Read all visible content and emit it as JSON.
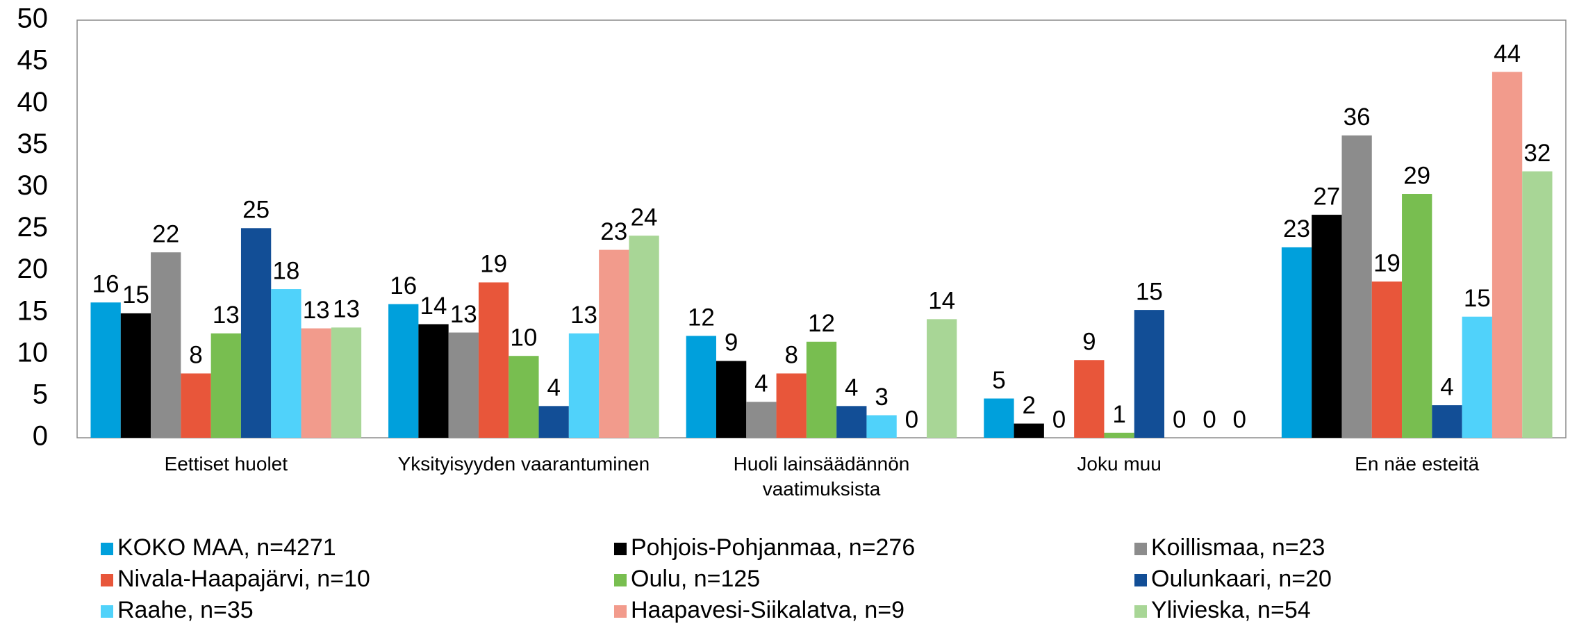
{
  "chart_data": {
    "type": "bar",
    "categories": [
      "Eettiset huolet",
      "Yksityisyyden vaarantuminen",
      "Huoli lainsäädännön vaatimuksista",
      "Joku muu",
      "En näe esteitä"
    ],
    "series": [
      {
        "name": "KOKO MAA, n=4271",
        "color": "#00a0dc",
        "values": [
          16.2,
          16.0,
          12.2,
          4.7,
          22.8
        ],
        "value_labels": [
          "16",
          "16",
          "12",
          "5",
          "23"
        ]
      },
      {
        "name": "Pohjois-Pohjanmaa, n=276",
        "color": "#000000",
        "values": [
          14.9,
          13.6,
          9.2,
          1.7,
          26.7
        ],
        "value_labels": [
          "15",
          "14",
          "9",
          "2",
          "27"
        ]
      },
      {
        "name": "Koillismaa, n=23",
        "color": "#8c8c8c",
        "values": [
          22.2,
          12.6,
          4.3,
          0,
          36.2
        ],
        "value_labels": [
          "22",
          "13",
          "4",
          "0",
          "36"
        ]
      },
      {
        "name": "Nivala-Haapajärvi, n=10",
        "color": "#e8563a",
        "values": [
          7.7,
          18.6,
          7.7,
          9.3,
          18.7
        ],
        "value_labels": [
          "8",
          "19",
          "8",
          "9",
          "19"
        ]
      },
      {
        "name": "Oulu, n=125",
        "color": "#78be50",
        "values": [
          12.5,
          9.8,
          11.5,
          0.6,
          29.2
        ],
        "value_labels": [
          "13",
          "10",
          "12",
          "1",
          "29"
        ]
      },
      {
        "name": "Oulunkaari, n=20",
        "color": "#124e96",
        "values": [
          25.1,
          3.8,
          3.8,
          15.3,
          3.9
        ],
        "value_labels": [
          "25",
          "4",
          "4",
          "15",
          "4"
        ]
      },
      {
        "name": "Raahe, n=35",
        "color": "#50d2fa",
        "values": [
          17.8,
          12.5,
          2.7,
          0,
          14.5
        ],
        "value_labels": [
          "18",
          "13",
          "3",
          "0",
          "15"
        ]
      },
      {
        "name": "Haapavesi-Siikalatva, n=9",
        "color": "#f29b8c",
        "values": [
          13.1,
          22.5,
          0,
          0,
          43.8
        ],
        "value_labels": [
          "13",
          "23",
          "0",
          "0",
          "44"
        ]
      },
      {
        "name": "Ylivieska, n=54",
        "color": "#a8d696",
        "values": [
          13.2,
          24.2,
          14.2,
          0,
          31.9
        ],
        "value_labels": [
          "13",
          "24",
          "14",
          "0",
          "32"
        ]
      }
    ],
    "ylim": [
      0,
      50
    ],
    "yticks": [
      0,
      5,
      10,
      15,
      20,
      25,
      30,
      35,
      40,
      45,
      50
    ],
    "grid": false,
    "legend": "bottom"
  }
}
